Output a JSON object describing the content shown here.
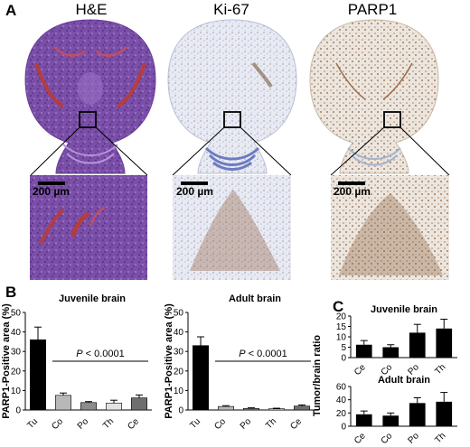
{
  "panel_a": {
    "letter": "A",
    "stains": [
      {
        "title": "H&E",
        "scale_label": "200 µm"
      },
      {
        "title": "Ki-67",
        "scale_label": "200 µm"
      },
      {
        "title": "PARP1",
        "scale_label": "200 µm"
      }
    ]
  },
  "panel_b": {
    "letter": "B"
  },
  "panel_c": {
    "letter": "C"
  },
  "chart_data": [
    {
      "type": "bar",
      "panel": "B",
      "title": "Juvenile brain",
      "ylabel": "PARP1-Positive area (%)",
      "ylim": [
        0,
        50
      ],
      "yticks": [
        "0",
        "10",
        "20",
        "30",
        "40",
        "50"
      ],
      "categories": [
        "Tu",
        "Co",
        "Po",
        "Th",
        "Ce"
      ],
      "values": [
        36,
        7.5,
        3.8,
        3.5,
        6.2
      ],
      "errors": [
        6.5,
        1.2,
        0.5,
        1.5,
        1.5
      ],
      "colors": [
        "#000000",
        "#b8b8b8",
        "#8c8c8c",
        "#e2e2e2",
        "#6e6e6e"
      ],
      "annotation": {
        "prefix": "P",
        "text": " < 0.0001"
      }
    },
    {
      "type": "bar",
      "panel": "B",
      "title": "Adult brain",
      "ylabel": "PARP1-Positive area (%)",
      "ylim": [
        0,
        50
      ],
      "yticks": [
        "0",
        "10",
        "20",
        "30",
        "40",
        "50"
      ],
      "categories": [
        "Tu",
        "Co",
        "Po",
        "Th",
        "Ce"
      ],
      "values": [
        33,
        1.8,
        0.8,
        0.6,
        2.0
      ],
      "errors": [
        4.5,
        0.4,
        0.3,
        0.3,
        0.6
      ],
      "colors": [
        "#000000",
        "#b8b8b8",
        "#8c8c8c",
        "#e2e2e2",
        "#6e6e6e"
      ],
      "annotation": {
        "prefix": "P",
        "text": " < 0.0001"
      }
    },
    {
      "type": "bar",
      "panel": "C",
      "title": "Juvenile brain",
      "ylabel": "Tumor/brain ratio",
      "ylim": [
        0,
        20
      ],
      "yticks": [
        "0",
        "5",
        "10",
        "15",
        "20"
      ],
      "categories": [
        "Ce",
        "Co",
        "Po",
        "Th"
      ],
      "values": [
        6.2,
        5.0,
        12.0,
        14.0
      ],
      "errors": [
        2.0,
        1.2,
        4.0,
        4.5
      ],
      "colors": [
        "#000000",
        "#000000",
        "#000000",
        "#000000"
      ]
    },
    {
      "type": "bar",
      "panel": "C",
      "title": "Adult brain",
      "ylabel": "Tumor/brain ratio",
      "ylim": [
        0,
        60
      ],
      "yticks": [
        "0",
        "20",
        "40",
        "60"
      ],
      "categories": [
        "Ce",
        "Co",
        "Po",
        "Th"
      ],
      "values": [
        18,
        16,
        35,
        37
      ],
      "errors": [
        5,
        4,
        8,
        14
      ],
      "colors": [
        "#000000",
        "#000000",
        "#000000",
        "#000000"
      ]
    }
  ]
}
